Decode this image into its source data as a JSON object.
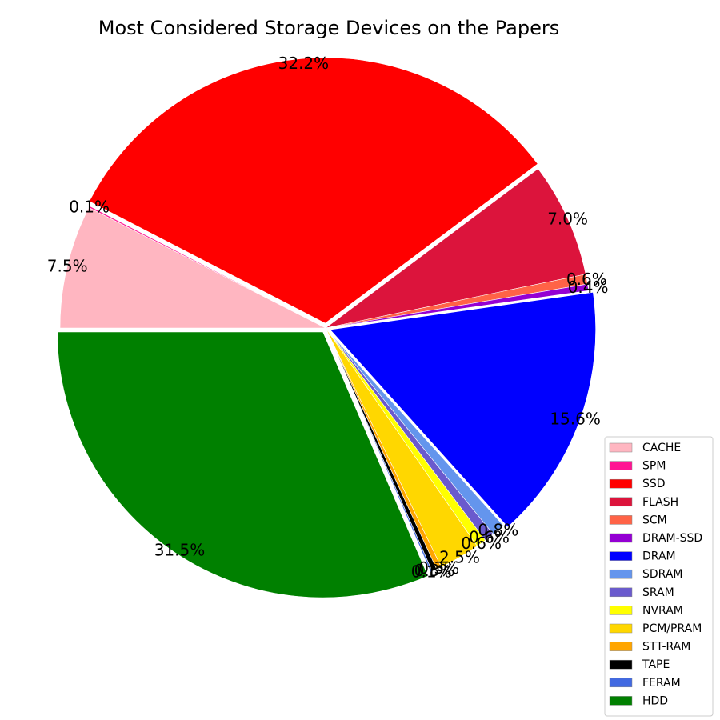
{
  "chart_data": {
    "type": "pie",
    "title": "Most Considered Storage Devices on the Papers",
    "legend_position": "lower-right",
    "slices": [
      {
        "label": "CACHE",
        "value": 7.5,
        "display": "7.5%",
        "color": "#FFB6C1"
      },
      {
        "label": "SPM",
        "value": 0.1,
        "display": "0.1%",
        "color": "#FF1493"
      },
      {
        "label": "SSD",
        "value": 32.2,
        "display": "32.2%",
        "color": "#FF0000"
      },
      {
        "label": "FLASH",
        "value": 7.0,
        "display": "7.0%",
        "color": "#DC143C"
      },
      {
        "label": "SCM",
        "value": 0.6,
        "display": "0.6%",
        "color": "#FF6347"
      },
      {
        "label": "DRAM-SSD",
        "value": 0.4,
        "display": "0.4%",
        "color": "#9400D3"
      },
      {
        "label": "DRAM",
        "value": 15.6,
        "display": "15.6%",
        "color": "#0000FF"
      },
      {
        "label": "SDRAM",
        "value": 0.8,
        "display": "0.8%",
        "color": "#6495ED"
      },
      {
        "label": "SRAM",
        "value": 0.6,
        "display": "0.6%",
        "color": "#6A5ACD"
      },
      {
        "label": "NVRAM",
        "value": 0.6,
        "display": "0.6%",
        "color": "#FFFF00"
      },
      {
        "label": "PCM/PRAM",
        "value": 2.5,
        "display": "2.5%",
        "color": "#FFD700"
      },
      {
        "label": "STT-RAM",
        "value": 0.3,
        "display": "0.3%",
        "color": "#FFA500"
      },
      {
        "label": "TAPE",
        "value": 0.3,
        "display": "0.3%",
        "color": "#000000"
      },
      {
        "label": "FERAM",
        "value": 0.1,
        "display": "0.1%",
        "color": "#4169E1"
      },
      {
        "label": "HDD",
        "value": 31.5,
        "display": "31.5%",
        "color": "#008000"
      }
    ]
  }
}
